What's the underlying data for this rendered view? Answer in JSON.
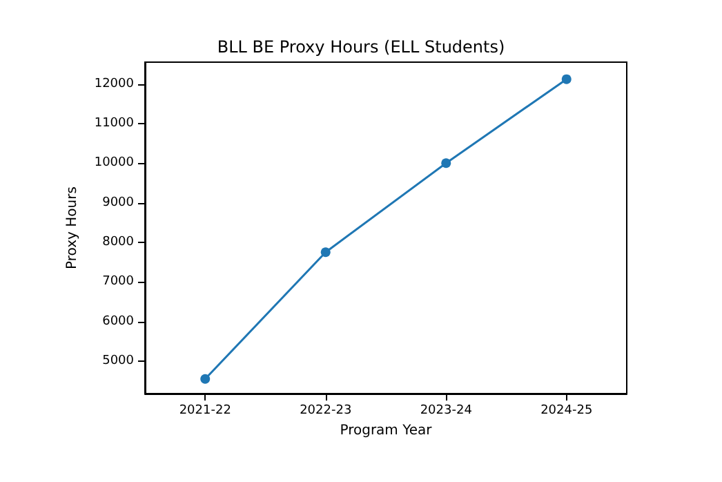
{
  "chart_data": {
    "type": "line",
    "title": "BLL BE Proxy Hours (ELL Students)",
    "xlabel": "Program Year",
    "ylabel": "Proxy Hours",
    "categories": [
      "2021-22",
      "2022-23",
      "2023-24",
      "2024-25"
    ],
    "series": [
      {
        "color": "#1f77b4",
        "values": [
          4550,
          7750,
          10000,
          12120
        ]
      }
    ],
    "ylim": [
      4180,
      12550
    ],
    "yticks": [
      5000,
      6000,
      7000,
      8000,
      9000,
      10000,
      11000,
      12000
    ],
    "grid": false,
    "marker": "circle",
    "line_style": "solid"
  }
}
